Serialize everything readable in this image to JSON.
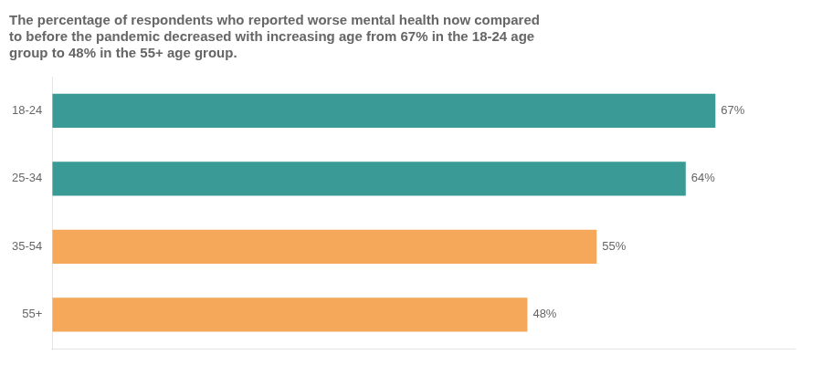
{
  "chart_data": {
    "type": "bar",
    "orientation": "horizontal",
    "title": [
      "The percentage of respondents who reported worse mental health now compared",
      "to before the pandemic decreased with increasing age from 67% in the 18-24 age",
      "group to 48% in the 55+ age group."
    ],
    "categories": [
      "18-24",
      "25-34",
      "35-54",
      "55+"
    ],
    "values": [
      67,
      64,
      55,
      48
    ],
    "value_labels": [
      "67%",
      "64%",
      "55%",
      "48%"
    ],
    "colors": [
      "#3a9a96",
      "#3a9a96",
      "#f5a85a",
      "#f5a85a"
    ],
    "xlim": [
      0,
      75
    ],
    "grid": false,
    "data_labels": true,
    "tick_labels": "y"
  }
}
